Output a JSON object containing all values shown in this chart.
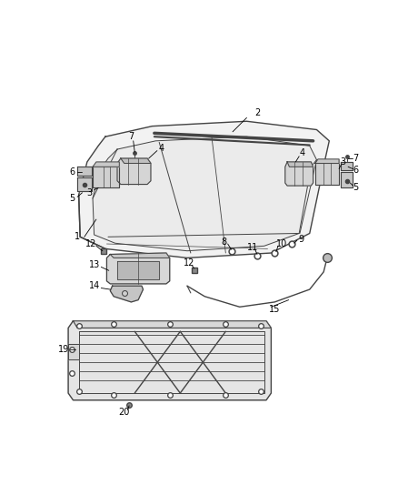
{
  "bg_color": "#ffffff",
  "line_color": "#444444",
  "label_color": "#000000",
  "font_size": 7.0,
  "fig_w": 4.38,
  "fig_h": 5.33,
  "dpi": 100
}
